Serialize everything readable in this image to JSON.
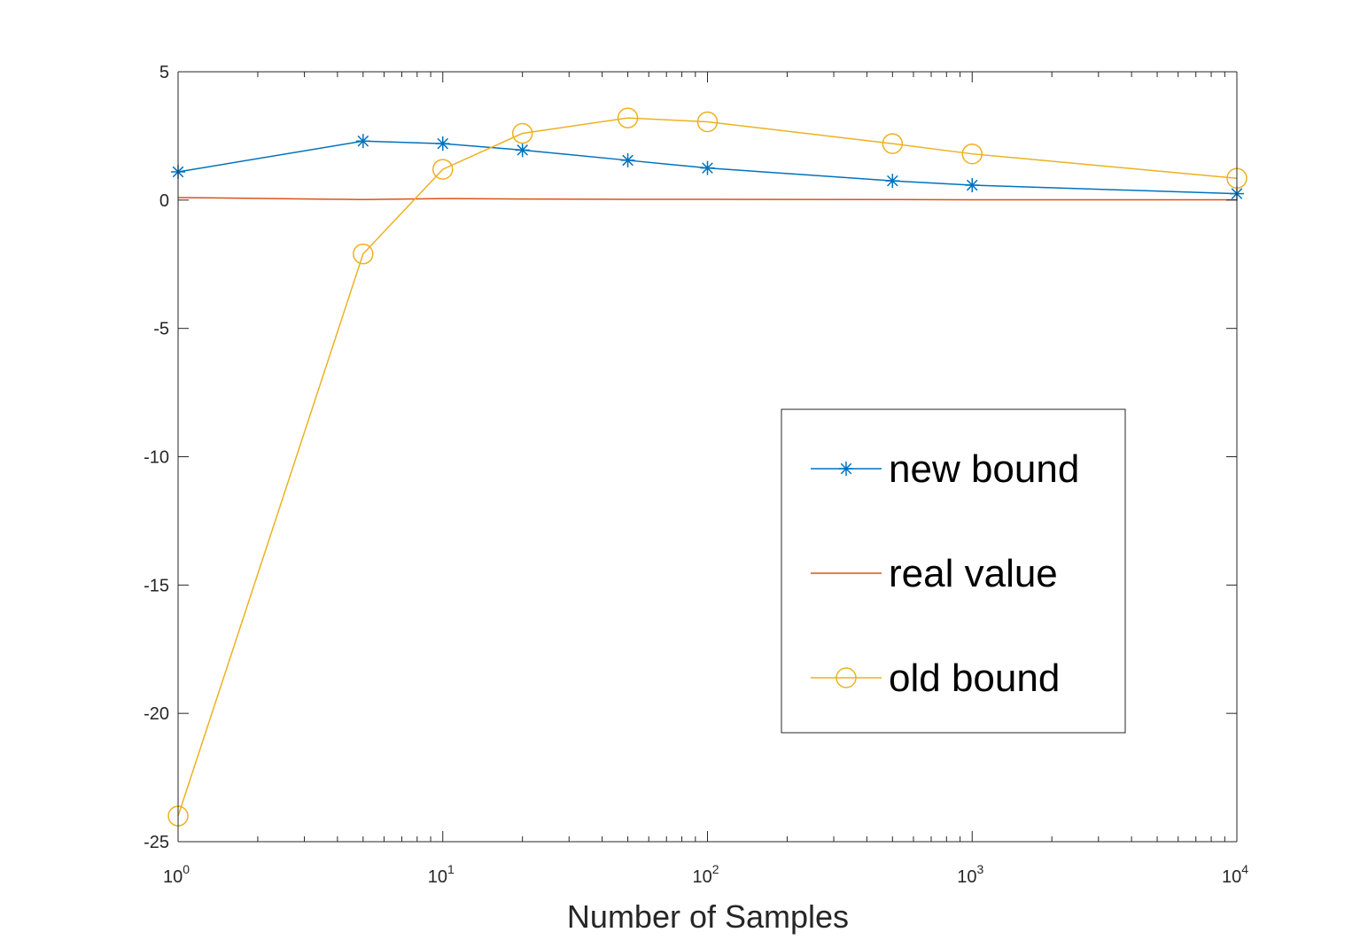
{
  "chart_data": {
    "type": "line",
    "title": "",
    "xlabel": "Number of Samples",
    "ylabel": "",
    "xscale": "log",
    "xlim": [
      1,
      10000
    ],
    "ylim": [
      -25,
      5
    ],
    "grid": false,
    "legend_placement": "lower-right",
    "x_ticks": [
      {
        "value": 1,
        "base": "10",
        "exp": "0"
      },
      {
        "value": 10,
        "base": "10",
        "exp": "1"
      },
      {
        "value": 100,
        "base": "10",
        "exp": "2"
      },
      {
        "value": 1000,
        "base": "10",
        "exp": "3"
      },
      {
        "value": 10000,
        "base": "10",
        "exp": "4"
      }
    ],
    "y_ticks": [
      {
        "value": 5,
        "label": "5"
      },
      {
        "value": 0,
        "label": "0"
      },
      {
        "value": -5,
        "label": "-5"
      },
      {
        "value": -10,
        "label": "-10"
      },
      {
        "value": -15,
        "label": "-15"
      },
      {
        "value": -20,
        "label": "-20"
      },
      {
        "value": -25,
        "label": "-25"
      }
    ],
    "series": [
      {
        "name": "new bound",
        "color": "#0072BD",
        "marker": "asterisk",
        "x": [
          1,
          5,
          10,
          20,
          50,
          100,
          500,
          1000,
          10000
        ],
        "y": [
          1.1,
          2.3,
          2.2,
          1.95,
          1.55,
          1.25,
          0.75,
          0.58,
          0.25
        ]
      },
      {
        "name": "real value",
        "color": "#D95319",
        "marker": "none",
        "x": [
          1,
          5,
          10,
          20,
          50,
          100,
          500,
          1000,
          10000
        ],
        "y": [
          0.1,
          0.02,
          0.06,
          0.04,
          0.03,
          0.03,
          0.02,
          0.01,
          0.01
        ]
      },
      {
        "name": "old bound",
        "color": "#EDB120",
        "marker": "circle",
        "x": [
          1,
          5,
          10,
          20,
          50,
          100,
          500,
          1000,
          10000
        ],
        "y": [
          -24.0,
          -2.1,
          1.2,
          2.6,
          3.2,
          3.05,
          2.2,
          1.8,
          0.85
        ]
      }
    ]
  }
}
